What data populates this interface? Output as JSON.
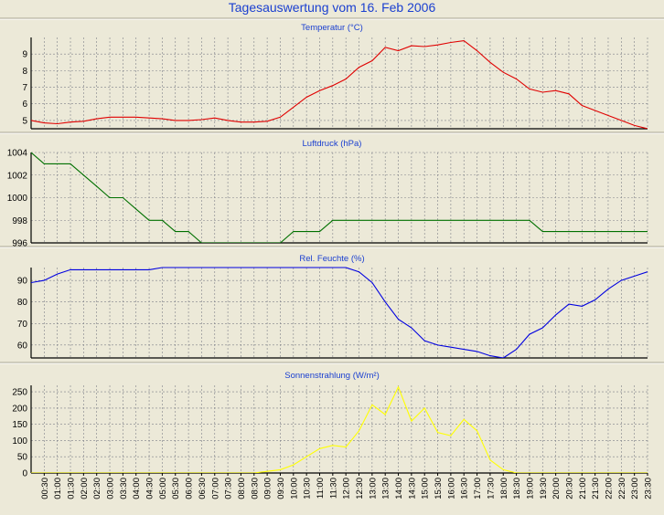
{
  "title": "Tagesauswertung vom 16. Feb 2006",
  "chart_data": [
    {
      "type": "line",
      "title": "Temperatur (°C)",
      "color": "#E00000",
      "ylim": [
        4.5,
        10
      ],
      "yticks": [
        5,
        6,
        7,
        8,
        9
      ],
      "x": [
        0,
        0.5,
        1,
        1.5,
        2,
        2.5,
        3,
        3.5,
        4,
        4.5,
        5,
        5.5,
        6,
        6.5,
        7,
        7.5,
        8,
        8.5,
        9,
        9.5,
        10,
        10.5,
        11,
        11.5,
        12,
        12.5,
        13,
        13.5,
        14,
        14.5,
        15,
        15.5,
        16,
        16.5,
        17,
        17.5,
        18,
        18.5,
        19,
        19.5,
        20,
        20.5,
        21,
        21.5,
        22,
        22.5,
        23,
        23.5
      ],
      "values": [
        5.0,
        4.85,
        4.8,
        4.9,
        4.95,
        5.1,
        5.2,
        5.2,
        5.2,
        5.15,
        5.1,
        5.0,
        5.0,
        5.05,
        5.15,
        5.0,
        4.9,
        4.9,
        4.95,
        5.2,
        5.8,
        6.4,
        6.8,
        7.1,
        7.5,
        8.2,
        8.6,
        9.4,
        9.2,
        9.5,
        9.45,
        9.55,
        9.7,
        9.8,
        9.2,
        8.5,
        7.9,
        7.5,
        6.9,
        6.7,
        6.8,
        6.6,
        5.9,
        5.6,
        5.3,
        5.0,
        4.7,
        4.5
      ]
    },
    {
      "type": "line",
      "title": "Luftdruck (hPa)",
      "color": "#007000",
      "ylim": [
        996,
        1004
      ],
      "yticks": [
        996,
        998,
        1000,
        1002,
        1004
      ],
      "x": [
        0,
        0.5,
        1,
        1.5,
        2,
        2.5,
        3,
        3.5,
        4,
        4.5,
        5,
        5.5,
        6,
        6.5,
        7,
        7.5,
        8,
        8.5,
        9,
        9.5,
        10,
        10.5,
        11,
        11.5,
        12,
        12.5,
        13,
        13.5,
        14,
        14.5,
        15,
        15.5,
        16,
        16.5,
        17,
        17.5,
        18,
        18.5,
        19,
        19.5,
        20,
        20.5,
        21,
        21.5,
        22,
        22.5,
        23,
        23.5
      ],
      "values": [
        1004,
        1003,
        1003,
        1003,
        1002,
        1001,
        1000,
        1000,
        999,
        998,
        998,
        997,
        997,
        996,
        996,
        996,
        996,
        996,
        996,
        996,
        997,
        997,
        997,
        998,
        998,
        998,
        998,
        998,
        998,
        998,
        998,
        998,
        998,
        998,
        998,
        998,
        998,
        998,
        998,
        997,
        997,
        997,
        997,
        997,
        997,
        997,
        997,
        997
      ]
    },
    {
      "type": "line",
      "title": "Rel. Feuchte (%)",
      "color": "#0000E0",
      "ylim": [
        54,
        96
      ],
      "yticks": [
        60,
        70,
        80,
        90
      ],
      "x": [
        0,
        0.5,
        1,
        1.5,
        2,
        2.5,
        3,
        3.5,
        4,
        4.5,
        5,
        5.5,
        6,
        6.5,
        7,
        7.5,
        8,
        8.5,
        9,
        9.5,
        10,
        10.5,
        11,
        11.5,
        12,
        12.5,
        13,
        13.5,
        14,
        14.5,
        15,
        15.5,
        16,
        16.5,
        17,
        17.5,
        18,
        18.5,
        19,
        19.5,
        20,
        20.5,
        21,
        21.5,
        22,
        22.5,
        23,
        23.5
      ],
      "values": [
        89,
        90,
        93,
        95,
        95,
        95,
        95,
        95,
        95,
        95,
        96,
        96,
        96,
        96,
        96,
        96,
        96,
        96,
        96,
        96,
        96,
        96,
        96,
        96,
        96,
        94,
        89,
        80,
        72,
        68,
        62,
        60,
        59,
        58,
        57,
        55,
        54,
        58,
        65,
        68,
        74,
        79,
        78,
        81,
        86,
        90,
        92,
        94
      ]
    },
    {
      "type": "line",
      "title": "Sonnenstrahlung (W/m²)",
      "color": "#FFFF00",
      "ylim": [
        0,
        270
      ],
      "yticks": [
        0,
        50,
        100,
        150,
        200,
        250
      ],
      "x": [
        0,
        0.5,
        1,
        1.5,
        2,
        2.5,
        3,
        3.5,
        4,
        4.5,
        5,
        5.5,
        6,
        6.5,
        7,
        7.5,
        8,
        8.5,
        9,
        9.5,
        10,
        10.5,
        11,
        11.5,
        12,
        12.5,
        13,
        13.5,
        14,
        14.5,
        15,
        15.5,
        16,
        16.5,
        17,
        17.5,
        18,
        18.5,
        19,
        19.5,
        20,
        20.5,
        21,
        21.5,
        22,
        22.5,
        23,
        23.5
      ],
      "values": [
        0,
        0,
        0,
        0,
        0,
        0,
        0,
        0,
        0,
        0,
        0,
        0,
        0,
        0,
        0,
        0,
        0,
        0,
        5,
        10,
        25,
        50,
        75,
        85,
        80,
        130,
        210,
        180,
        265,
        160,
        200,
        125,
        115,
        165,
        130,
        40,
        10,
        0,
        0,
        0,
        0,
        0,
        0,
        0,
        0,
        0,
        0,
        0
      ]
    }
  ],
  "xticks": [
    "00:30",
    "01:00",
    "01:30",
    "02:00",
    "02:30",
    "03:00",
    "03:30",
    "04:00",
    "04:30",
    "05:00",
    "05:30",
    "06:00",
    "06:30",
    "07:00",
    "07:30",
    "08:00",
    "08:30",
    "09:00",
    "09:30",
    "10:00",
    "10:30",
    "11:00",
    "11:30",
    "12:00",
    "12:30",
    "13:00",
    "13:30",
    "14:00",
    "14:30",
    "15:00",
    "15:30",
    "16:00",
    "16:30",
    "17:00",
    "17:30",
    "18:00",
    "18:30",
    "19:00",
    "19:30",
    "20:00",
    "20:30",
    "21:00",
    "21:30",
    "22:00",
    "22:30",
    "23:00",
    "23:30"
  ]
}
